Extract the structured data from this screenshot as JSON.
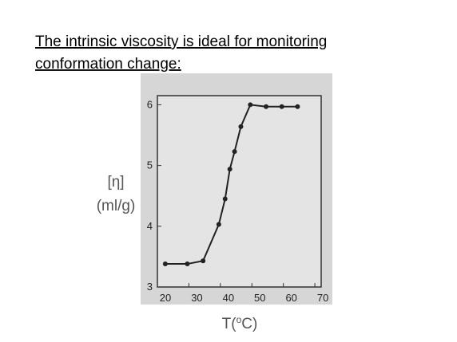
{
  "title_lines": [
    "The intrinsic viscosity is ideal for monitoring",
    "conformation change:"
  ],
  "chart_data": {
    "type": "line",
    "x": [
      22.5,
      29.5,
      34.5,
      39.5,
      41.5,
      43,
      44.5,
      46.5,
      49.5,
      54.5,
      59.5,
      64.5
    ],
    "values": [
      3.38,
      3.38,
      3.43,
      4.03,
      4.45,
      4.94,
      5.23,
      5.64,
      6.0,
      5.97,
      5.97,
      5.97
    ],
    "color": "#222222",
    "xlim": [
      20,
      72
    ],
    "xticks": [
      20,
      30,
      40,
      50,
      60,
      70
    ],
    "ylim": [
      3,
      6.15
    ],
    "yticks": [
      3,
      4,
      5,
      6
    ],
    "y_label_lines": [
      "[η]",
      "(ml/g)"
    ],
    "x_label": {
      "prefix": "T(",
      "superscript": "o",
      "suffix": "C)"
    }
  }
}
